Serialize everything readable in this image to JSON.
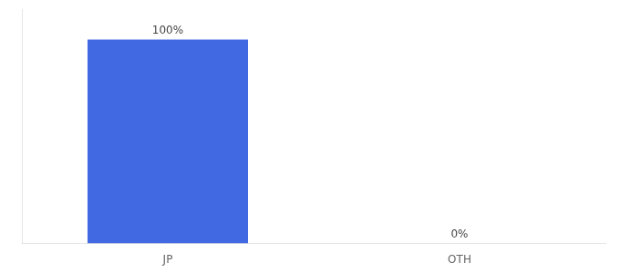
{
  "chart_data": {
    "type": "bar",
    "categories": [
      "JP",
      "OTH"
    ],
    "values": [
      100,
      0
    ],
    "value_labels": [
      "100%",
      "0%"
    ],
    "color": "#4169e1",
    "ylim": [
      0,
      115
    ],
    "grid": false,
    "data_labels": true,
    "tick_labels": "x"
  }
}
